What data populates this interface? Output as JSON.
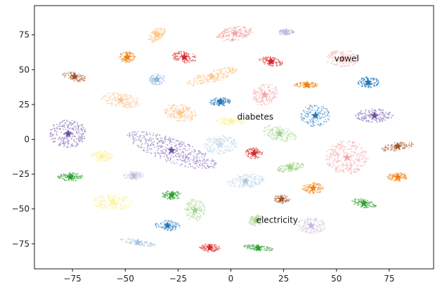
{
  "chart_data": {
    "type": "scatter",
    "xlim": [
      -93,
      96
    ],
    "ylim": [
      -93,
      96
    ],
    "x_ticks": [
      -75,
      -50,
      -25,
      0,
      25,
      50,
      75
    ],
    "y_ticks": [
      -75,
      -50,
      -25,
      0,
      25,
      50,
      75
    ],
    "grid": false,
    "annotations": [
      {
        "text": "vowel",
        "x": 49,
        "y": 58
      },
      {
        "text": "diabetes",
        "x": 3,
        "y": 16
      },
      {
        "text": "electricity",
        "x": 12,
        "y": -58
      }
    ],
    "clusters": [
      {
        "x": 2,
        "y": 76,
        "w": 9,
        "h": 5,
        "angle": 20,
        "color": "#f4a5a5",
        "star": "#f4a5a5"
      },
      {
        "x": -35,
        "y": 75,
        "w": 3,
        "h": 6,
        "angle": -30,
        "color": "#fdc58a",
        "star": "#fdc58a"
      },
      {
        "x": 26,
        "y": 77,
        "w": 4,
        "h": 2,
        "angle": 0,
        "color": "#c4b8e0",
        "star": "#c4b8e0"
      },
      {
        "x": -49,
        "y": 59,
        "w": 4,
        "h": 4,
        "angle": 0,
        "color": "#f89a3a",
        "star": "#f07f10"
      },
      {
        "x": -22,
        "y": 59,
        "w": 6,
        "h": 4,
        "angle": -15,
        "color": "#e35656",
        "star": "#d62728"
      },
      {
        "x": 19,
        "y": 56,
        "w": 6,
        "h": 3,
        "angle": -20,
        "color": "#e35656",
        "star": "#d62728"
      },
      {
        "x": 53,
        "y": 58,
        "w": 8,
        "h": 6,
        "angle": 0,
        "color": "#f7c4c4",
        "star": "#f4a5a5"
      },
      {
        "x": -74,
        "y": 45,
        "w": 6,
        "h": 3,
        "angle": -20,
        "color": "#c28560",
        "star": "#a0522d"
      },
      {
        "x": -35,
        "y": 43,
        "w": 4,
        "h": 4,
        "angle": 0,
        "color": "#a6c5e6",
        "star": "#8fb4de"
      },
      {
        "x": -9,
        "y": 45,
        "w": 13,
        "h": 4,
        "angle": 25,
        "color": "#fdc58a",
        "star": "#fdc58a"
      },
      {
        "x": 36,
        "y": 39,
        "w": 6,
        "h": 2,
        "angle": 0,
        "color": "#f89a3a",
        "star": "#f07f10"
      },
      {
        "x": 65,
        "y": 41,
        "w": 5,
        "h": 4,
        "angle": 0,
        "color": "#3f86c7",
        "star": "#1f77b4"
      },
      {
        "x": 16,
        "y": 32,
        "w": 6,
        "h": 8,
        "angle": -20,
        "color": "#f7b8b8",
        "star": "#f4a5a5"
      },
      {
        "x": -52,
        "y": 28,
        "w": 10,
        "h": 5,
        "angle": -15,
        "color": "#fdd0a2",
        "star": "#fdc58a"
      },
      {
        "x": -5,
        "y": 27,
        "w": 5,
        "h": 3,
        "angle": 0,
        "color": "#3f86c7",
        "star": "#1f77b4"
      },
      {
        "x": -24,
        "y": 19,
        "w": 8,
        "h": 6,
        "angle": -25,
        "color": "#fdc58a",
        "star": "#fdc58a"
      },
      {
        "x": 40,
        "y": 17,
        "w": 7,
        "h": 8,
        "angle": 0,
        "color": "#6ea6d6",
        "star": "#1f77b4"
      },
      {
        "x": 68,
        "y": 17,
        "w": 9,
        "h": 5,
        "angle": 0,
        "color": "#9b86c6",
        "star": "#6a51a3"
      },
      {
        "x": 0,
        "y": 13,
        "w": 7,
        "h": 3,
        "angle": 0,
        "color": "#fbf3a0",
        "star": "#fbf3a0"
      },
      {
        "x": -77,
        "y": 4,
        "w": 9,
        "h": 10,
        "angle": 0,
        "color": "#9b86c6",
        "star": "#6a51a3"
      },
      {
        "x": -28,
        "y": -8,
        "w": 24,
        "h": 8,
        "angle": -30,
        "color": "#a18fcb",
        "star": "#6a51a3"
      },
      {
        "x": 23,
        "y": 4,
        "w": 9,
        "h": 5,
        "angle": -25,
        "color": "#b9e0a6",
        "star": "#9fd08a"
      },
      {
        "x": -5,
        "y": -4,
        "w": 8,
        "h": 7,
        "angle": 0,
        "color": "#c6dbef",
        "star": "#c6dbef"
      },
      {
        "x": 11,
        "y": -10,
        "w": 4,
        "h": 4,
        "angle": 0,
        "color": "#e35656",
        "star": "#d62728"
      },
      {
        "x": 55,
        "y": -13,
        "w": 10,
        "h": 12,
        "angle": 0,
        "color": "#f7b8b8",
        "star": "#f4a5a5"
      },
      {
        "x": 79,
        "y": -5,
        "w": 8,
        "h": 3,
        "angle": 15,
        "color": "#c28560",
        "star": "#a0522d"
      },
      {
        "x": -61,
        "y": -12,
        "w": 5,
        "h": 4,
        "angle": -15,
        "color": "#fbf3a0",
        "star": "#fbf3a0"
      },
      {
        "x": -76,
        "y": -27,
        "w": 6,
        "h": 3,
        "angle": 0,
        "color": "#4caf50",
        "star": "#2ca02c"
      },
      {
        "x": -46,
        "y": -26,
        "w": 5,
        "h": 3,
        "angle": 0,
        "color": "#d8cbe6",
        "star": "#c4b8e0"
      },
      {
        "x": 7,
        "y": -30,
        "w": 9,
        "h": 5,
        "angle": 10,
        "color": "#c6dbef",
        "star": "#a6c5e6"
      },
      {
        "x": 28,
        "y": -20,
        "w": 7,
        "h": 3,
        "angle": 15,
        "color": "#a3d891",
        "star": "#9fd08a"
      },
      {
        "x": 79,
        "y": -27,
        "w": 5,
        "h": 3,
        "angle": 0,
        "color": "#f89a3a",
        "star": "#f07f10"
      },
      {
        "x": -56,
        "y": -45,
        "w": 9,
        "h": 6,
        "angle": 0,
        "color": "#fbf3a0",
        "star": "#fbf3a0"
      },
      {
        "x": -28,
        "y": -40,
        "w": 5,
        "h": 3,
        "angle": 0,
        "color": "#4caf50",
        "star": "#2ca02c"
      },
      {
        "x": -17,
        "y": -51,
        "w": 5,
        "h": 8,
        "angle": 0,
        "color": "#b9e0a6",
        "star": "#9fd08a"
      },
      {
        "x": 24,
        "y": -43,
        "w": 4,
        "h": 3,
        "angle": 0,
        "color": "#c28560",
        "star": "#a0522d"
      },
      {
        "x": 39,
        "y": -35,
        "w": 5,
        "h": 4,
        "angle": 0,
        "color": "#f89a3a",
        "star": "#f07f10"
      },
      {
        "x": 63,
        "y": -46,
        "w": 6,
        "h": 3,
        "angle": -20,
        "color": "#4caf50",
        "star": "#2ca02c"
      },
      {
        "x": -30,
        "y": -62,
        "w": 6,
        "h": 4,
        "angle": 0,
        "color": "#6ea6d6",
        "star": "#1f77b4"
      },
      {
        "x": 12,
        "y": -58,
        "w": 4,
        "h": 4,
        "angle": 0,
        "color": "#b9e0a6",
        "star": "#9fd08a"
      },
      {
        "x": 38,
        "y": -62,
        "w": 7,
        "h": 6,
        "angle": 0,
        "color": "#d8cbe6",
        "star": "#c4b8e0"
      },
      {
        "x": -44,
        "y": -74,
        "w": 9,
        "h": 2,
        "angle": -15,
        "color": "#b7d3ea",
        "star": "#a6c5e6"
      },
      {
        "x": -10,
        "y": -78,
        "w": 5,
        "h": 3,
        "angle": 0,
        "color": "#e35656",
        "star": "#d62728"
      },
      {
        "x": 13,
        "y": -78,
        "w": 7,
        "h": 2,
        "angle": -10,
        "color": "#4caf50",
        "star": "#2ca02c"
      }
    ]
  }
}
